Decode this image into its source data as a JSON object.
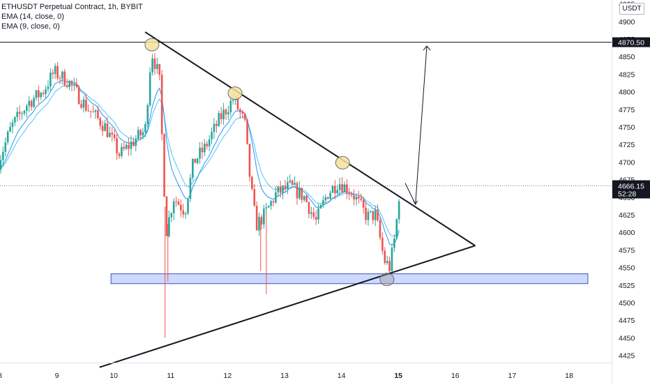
{
  "legend": {
    "symbol": "ETHUSDT Perpetual Contract, 1h, BYBIT",
    "ema14": "EMA (14, close, 0)",
    "ema9": "EMA (9, close, 0)"
  },
  "currency": "USDT",
  "colors": {
    "up": "#26a69a",
    "down": "#ef5350",
    "ema14": "#4fc3f7",
    "ema9": "#2196f3",
    "zone_fill": "#cdd9ff",
    "zone_stroke": "#3f51b5",
    "highlight": "#f5e29a"
  },
  "chart_data": {
    "type": "candlestick",
    "title": "ETHUSDT Perpetual Contract, 1h, BYBIT",
    "xlabel": "",
    "ylabel": "",
    "ylim": [
      4400,
      4935
    ],
    "x_ticks": [
      {
        "day": 8,
        "label": "8"
      },
      {
        "day": 9,
        "label": "9"
      },
      {
        "day": 10,
        "label": "10"
      },
      {
        "day": 11,
        "label": "11"
      },
      {
        "day": 12,
        "label": "12"
      },
      {
        "day": 13,
        "label": "13"
      },
      {
        "day": 14,
        "label": "14"
      },
      {
        "day": 15,
        "label": "15"
      },
      {
        "day": 16,
        "label": "16"
      },
      {
        "day": 17,
        "label": "17"
      },
      {
        "day": 18,
        "label": "18"
      }
    ],
    "y_ticks": [
      4425,
      4450,
      4475,
      4500,
      4525,
      4550,
      4575,
      4600,
      4625,
      4650,
      4675,
      4700,
      4725,
      4750,
      4775,
      4800,
      4825,
      4850,
      4875,
      4900,
      4925
    ],
    "price_labels": [
      {
        "value": 4870.5,
        "text": "4870.50"
      },
      {
        "value": 4666.15,
        "text": "4666.15",
        "subtext": "52:28"
      }
    ],
    "horizontal_line": 4870.5,
    "current_price_line": 4666.15,
    "support_zone": {
      "from_day": 9.95,
      "to_day": 18.33,
      "low": 4527,
      "high": 4541
    },
    "trendlines": [
      {
        "name": "descending",
        "from": {
          "day": 10.55,
          "price": 4885
        },
        "to": {
          "day": 16.35,
          "price": 4581
        }
      },
      {
        "name": "ascending",
        "from": {
          "day": 9.75,
          "price": 4408
        },
        "to": {
          "day": 16.35,
          "price": 4581
        }
      }
    ],
    "projection_arrow": [
      {
        "day": 15.12,
        "price": 4670
      },
      {
        "day": 15.3,
        "price": 4640
      },
      {
        "day": 15.5,
        "price": 4865
      }
    ],
    "highlighted_points": [
      {
        "day": 10.67,
        "price": 4867
      },
      {
        "day": 12.13,
        "price": 4798
      },
      {
        "day": 14.02,
        "price": 4699
      },
      {
        "day": 14.8,
        "price": 4533
      }
    ],
    "anchors": [
      {
        "day": 7.97,
        "price": 4700
      },
      {
        "day": 8.2,
        "price": 4750
      },
      {
        "day": 8.5,
        "price": 4785
      },
      {
        "day": 8.75,
        "price": 4800
      },
      {
        "day": 8.95,
        "price": 4828
      },
      {
        "day": 9.2,
        "price": 4815
      },
      {
        "day": 9.5,
        "price": 4780
      },
      {
        "day": 9.85,
        "price": 4750
      },
      {
        "day": 10.1,
        "price": 4710
      },
      {
        "day": 10.35,
        "price": 4730
      },
      {
        "day": 10.55,
        "price": 4745
      },
      {
        "day": 10.66,
        "price": 4858
      },
      {
        "day": 10.8,
        "price": 4820
      },
      {
        "day": 10.92,
        "price": 4600
      },
      {
        "day": 11.05,
        "price": 4650
      },
      {
        "day": 11.25,
        "price": 4630
      },
      {
        "day": 11.4,
        "price": 4700
      },
      {
        "day": 11.6,
        "price": 4720
      },
      {
        "day": 11.85,
        "price": 4760
      },
      {
        "day": 12.1,
        "price": 4790
      },
      {
        "day": 12.3,
        "price": 4755
      },
      {
        "day": 12.4,
        "price": 4670
      },
      {
        "day": 12.5,
        "price": 4610
      },
      {
        "day": 12.65,
        "price": 4625
      },
      {
        "day": 12.85,
        "price": 4655
      },
      {
        "day": 13.1,
        "price": 4665
      },
      {
        "day": 13.35,
        "price": 4650
      },
      {
        "day": 13.55,
        "price": 4615
      },
      {
        "day": 13.75,
        "price": 4655
      },
      {
        "day": 13.95,
        "price": 4672
      },
      {
        "day": 14.2,
        "price": 4655
      },
      {
        "day": 14.45,
        "price": 4622
      },
      {
        "day": 14.6,
        "price": 4625
      },
      {
        "day": 14.75,
        "price": 4560
      },
      {
        "day": 14.85,
        "price": 4550
      },
      {
        "day": 14.95,
        "price": 4600
      },
      {
        "day": 15.03,
        "price": 4668
      }
    ],
    "wicks": [
      {
        "day": 10.9,
        "price": 4450
      },
      {
        "day": 12.68,
        "price": 4512
      },
      {
        "day": 10.95,
        "price": 4530
      },
      {
        "day": 12.58,
        "price": 4545
      }
    ]
  }
}
